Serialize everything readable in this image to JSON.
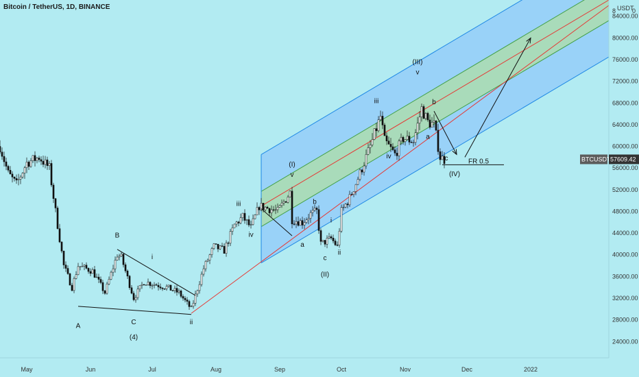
{
  "title": "Bitcoin / TetherUS, 1D, BINANCE",
  "currency": "USDT",
  "corner_mark": "8",
  "corner_zero": "0",
  "colors": {
    "background": "#b2ebf2",
    "up": "#ffffff",
    "down": "#111111",
    "channel_outer": "#90caf9",
    "channel_inner": "#a5d6a7",
    "median": "#e53935",
    "lines": "#111111"
  },
  "chart_data": {
    "type": "candlestick",
    "symbol": "BTCUSDT",
    "last_price": "57609.42",
    "y_axis": {
      "ticks": [
        "84000.00",
        "80000.00",
        "76000.00",
        "72000.00",
        "68000.00",
        "64000.00",
        "60000.00",
        "56000.00",
        "52000.00",
        "48000.00",
        "44000.00",
        "40000.00",
        "36000.00",
        "32000.00",
        "28000.00",
        "24000.00"
      ],
      "values": [
        84000,
        80000,
        76000,
        72000,
        68000,
        64000,
        60000,
        56000,
        52000,
        48000,
        44000,
        40000,
        36000,
        32000,
        28000,
        24000
      ]
    },
    "x_axis": {
      "labels": [
        "May",
        "Jun",
        "Jul",
        "Aug",
        "Sep",
        "Oct",
        "Nov",
        "Dec",
        "2022"
      ],
      "dates": [
        "2021-05-01",
        "2021-06-01",
        "2021-07-01",
        "2021-08-01",
        "2021-09-01",
        "2021-10-01",
        "2021-11-01",
        "2021-12-01",
        "2022-01-01"
      ]
    },
    "date_range": [
      "2021-04-18",
      "2022-02-08"
    ],
    "y_range": [
      21000,
      87000
    ],
    "price_path": [
      {
        "date": "2021-04-18",
        "price": 60000
      },
      {
        "date": "2021-04-22",
        "price": 55000
      },
      {
        "date": "2021-04-26",
        "price": 53000
      },
      {
        "date": "2021-05-01",
        "price": 57000
      },
      {
        "date": "2021-05-07",
        "price": 58000
      },
      {
        "date": "2021-05-12",
        "price": 56000
      },
      {
        "date": "2021-05-15",
        "price": 48000
      },
      {
        "date": "2021-05-19",
        "price": 38000
      },
      {
        "date": "2021-05-23",
        "price": 34000
      },
      {
        "date": "2021-05-26",
        "price": 38000
      },
      {
        "date": "2021-06-02",
        "price": 37000
      },
      {
        "date": "2021-06-08",
        "price": 33000
      },
      {
        "date": "2021-06-14",
        "price": 40000
      },
      {
        "date": "2021-06-16",
        "price": 39500
      },
      {
        "date": "2021-06-22",
        "price": 32000
      },
      {
        "date": "2021-06-27",
        "price": 35000
      },
      {
        "date": "2021-07-03",
        "price": 34500
      },
      {
        "date": "2021-07-08",
        "price": 34000
      },
      {
        "date": "2021-07-14",
        "price": 33000
      },
      {
        "date": "2021-07-20",
        "price": 30000
      },
      {
        "date": "2021-07-22",
        "price": 32500
      },
      {
        "date": "2021-07-26",
        "price": 37500
      },
      {
        "date": "2021-07-31",
        "price": 41500
      },
      {
        "date": "2021-08-05",
        "price": 40800
      },
      {
        "date": "2021-08-10",
        "price": 45500
      },
      {
        "date": "2021-08-14",
        "price": 47000
      },
      {
        "date": "2021-08-18",
        "price": 45000
      },
      {
        "date": "2021-08-22",
        "price": 49000
      },
      {
        "date": "2021-08-27",
        "price": 48500
      },
      {
        "date": "2021-08-31",
        "price": 48000
      },
      {
        "date": "2021-09-06",
        "price": 51500
      },
      {
        "date": "2021-09-07",
        "price": 46500
      },
      {
        "date": "2021-09-12",
        "price": 46000
      },
      {
        "date": "2021-09-16",
        "price": 47500
      },
      {
        "date": "2021-09-19",
        "price": 48000
      },
      {
        "date": "2021-09-21",
        "price": 42000
      },
      {
        "date": "2021-09-26",
        "price": 43000
      },
      {
        "date": "2021-09-29",
        "price": 41500
      },
      {
        "date": "2021-10-01",
        "price": 48000
      },
      {
        "date": "2021-10-05",
        "price": 50500
      },
      {
        "date": "2021-10-10",
        "price": 55000
      },
      {
        "date": "2021-10-15",
        "price": 60000
      },
      {
        "date": "2021-10-20",
        "price": 65500
      },
      {
        "date": "2021-10-22",
        "price": 61000
      },
      {
        "date": "2021-10-27",
        "price": 58500
      },
      {
        "date": "2021-10-31",
        "price": 61500
      },
      {
        "date": "2021-11-05",
        "price": 61000
      },
      {
        "date": "2021-11-09",
        "price": 67000
      },
      {
        "date": "2021-11-12",
        "price": 64500
      },
      {
        "date": "2021-11-15",
        "price": 64000
      },
      {
        "date": "2021-11-18",
        "price": 58000
      },
      {
        "date": "2021-11-20",
        "price": 57600
      }
    ],
    "channel": {
      "start": {
        "date": "2021-08-23",
        "price": 49000
      },
      "end": {
        "date": "2022-02-08",
        "price": 87000
      },
      "lines": [
        {
          "offset": 9500,
          "role": "outer-upper"
        },
        {
          "offset": 2700,
          "role": "inner-upper"
        },
        {
          "offset": 0,
          "role": "median"
        },
        {
          "offset": -3800,
          "role": "inner-lower"
        },
        {
          "offset": -10500,
          "role": "outer-lower"
        }
      ]
    },
    "long_median": {
      "start": {
        "date": "2021-07-20",
        "price": 29200
      },
      "end": {
        "date": "2022-02-08",
        "price": 86000
      }
    },
    "trendlines": [
      {
        "from": {
          "date": "2021-05-26",
          "price": 30500
        },
        "to": {
          "date": "2021-07-20",
          "price": 29000
        }
      },
      {
        "from": {
          "date": "2021-06-14",
          "price": 41000
        },
        "to": {
          "date": "2021-07-22",
          "price": 32500
        }
      },
      {
        "from": {
          "date": "2021-08-23",
          "price": 48500
        },
        "to": {
          "date": "2021-09-07",
          "price": 43500
        }
      }
    ],
    "fr_line": {
      "from": {
        "date": "2021-11-19",
        "price": 56600
      },
      "to": {
        "date": "2021-12-19",
        "price": 56600
      },
      "label": "FR 0.5"
    },
    "arrows": [
      {
        "from": {
          "date": "2021-11-15",
          "price": 66500
        },
        "to": {
          "date": "2021-11-26",
          "price": 58500
        }
      },
      {
        "from": {
          "date": "2021-11-30",
          "price": 58000
        },
        "to": {
          "date": "2022-01-01",
          "price": 80000
        }
      }
    ],
    "wave_labels": [
      {
        "text": "A",
        "date": "2021-05-26",
        "price": 26500
      },
      {
        "text": "B",
        "date": "2021-06-14",
        "price": 43200
      },
      {
        "text": "C",
        "date": "2021-06-22",
        "price": 27200
      },
      {
        "text": "(4)",
        "date": "2021-06-22",
        "price": 24400
      },
      {
        "text": "i",
        "date": "2021-07-01",
        "price": 39200
      },
      {
        "text": "ii",
        "date": "2021-07-20",
        "price": 27200
      },
      {
        "text": "iii",
        "date": "2021-08-12",
        "price": 49000
      },
      {
        "text": "iv",
        "date": "2021-08-18",
        "price": 43300
      },
      {
        "text": "(I)",
        "date": "2021-09-07",
        "price": 56300
      },
      {
        "text": "v",
        "date": "2021-09-07",
        "price": 54400
      },
      {
        "text": "a",
        "date": "2021-09-12",
        "price": 41500
      },
      {
        "text": "b",
        "date": "2021-09-18",
        "price": 49400
      },
      {
        "text": "c",
        "date": "2021-09-23",
        "price": 39000
      },
      {
        "text": "(II)",
        "date": "2021-09-23",
        "price": 36000
      },
      {
        "text": "i",
        "date": "2021-09-26",
        "price": 46000
      },
      {
        "text": "ii",
        "date": "2021-09-30",
        "price": 40000
      },
      {
        "text": "iii",
        "date": "2021-10-18",
        "price": 68000
      },
      {
        "text": "iv",
        "date": "2021-10-24",
        "price": 57800
      },
      {
        "text": "(III)",
        "date": "2021-11-07",
        "price": 75200
      },
      {
        "text": "v",
        "date": "2021-11-07",
        "price": 73300
      },
      {
        "text": "a",
        "date": "2021-11-12",
        "price": 61400
      },
      {
        "text": "b",
        "date": "2021-11-15",
        "price": 67800
      },
      {
        "text": "c",
        "date": "2021-11-21",
        "price": 57400
      },
      {
        "text": "(IV)",
        "date": "2021-11-25",
        "price": 54500
      }
    ]
  }
}
